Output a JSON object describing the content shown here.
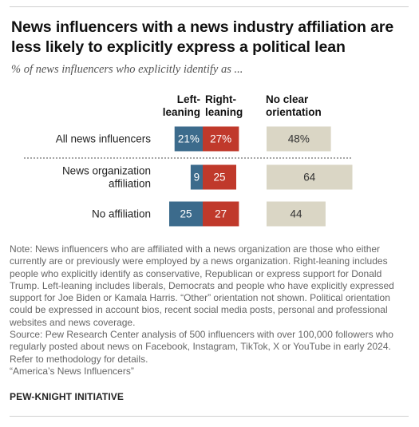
{
  "title": "News influencers with a news industry affiliation are less likely to explicitly express a political lean",
  "subtitle": "% of news influencers who explicitly identify as ...",
  "colors": {
    "left": "#3c6b8c",
    "right": "#c0392b",
    "neutral": "#dad6c5",
    "text_light": "#ffffff",
    "text_dark": "#333333"
  },
  "chart_data": {
    "type": "bar",
    "title": "News influencers with a news industry affiliation are less likely to explicitly express a political lean",
    "subtitle": "% of news influencers who explicitly identify as ...",
    "column_headers": {
      "left": "Left-\nleaning",
      "right": "Right-\nleaning",
      "none": "No clear\norientation"
    },
    "categories": [
      "All news influencers",
      "News organization affiliation",
      "No affiliation"
    ],
    "category_labels": [
      [
        "All news influencers"
      ],
      [
        "News organization",
        "affiliation"
      ],
      [
        "No affiliation"
      ]
    ],
    "series": [
      {
        "name": "Left-leaning",
        "values": [
          21,
          9,
          25
        ],
        "labels": [
          "21%",
          "9",
          "25"
        ]
      },
      {
        "name": "Right-leaning",
        "values": [
          27,
          25,
          27
        ],
        "labels": [
          "27%",
          "25",
          "27"
        ]
      },
      {
        "name": "No clear orientation",
        "values": [
          48,
          64,
          44
        ],
        "labels": [
          "48%",
          "64",
          "44"
        ]
      }
    ]
  },
  "notes": [
    "Note: News influencers who are affiliated with a news organization are those who either",
    "currently are or previously were employed by a news organization. Right-leaning includes",
    "people who explicitly identify as conservative, Republican or express support for Donald",
    "Trump. Left-leaning includes liberals, Democrats and people who have explicitly expressed",
    "support for Joe Biden or Kamala Harris. “Other” orientation not shown. Political orientation",
    "could be expressed in account bios, recent social media posts, personal and professional",
    "websites and news coverage.",
    "Source: Pew Research Center analysis of 500 influencers with over 100,000 followers who",
    "regularly posted about news on Facebook, Instagram, TikTok, X or YouTube in early 2024.",
    "Refer to methodology for details.",
    "“America’s News Influencers”"
  ],
  "brand": "PEW-KNIGHT INITIATIVE"
}
